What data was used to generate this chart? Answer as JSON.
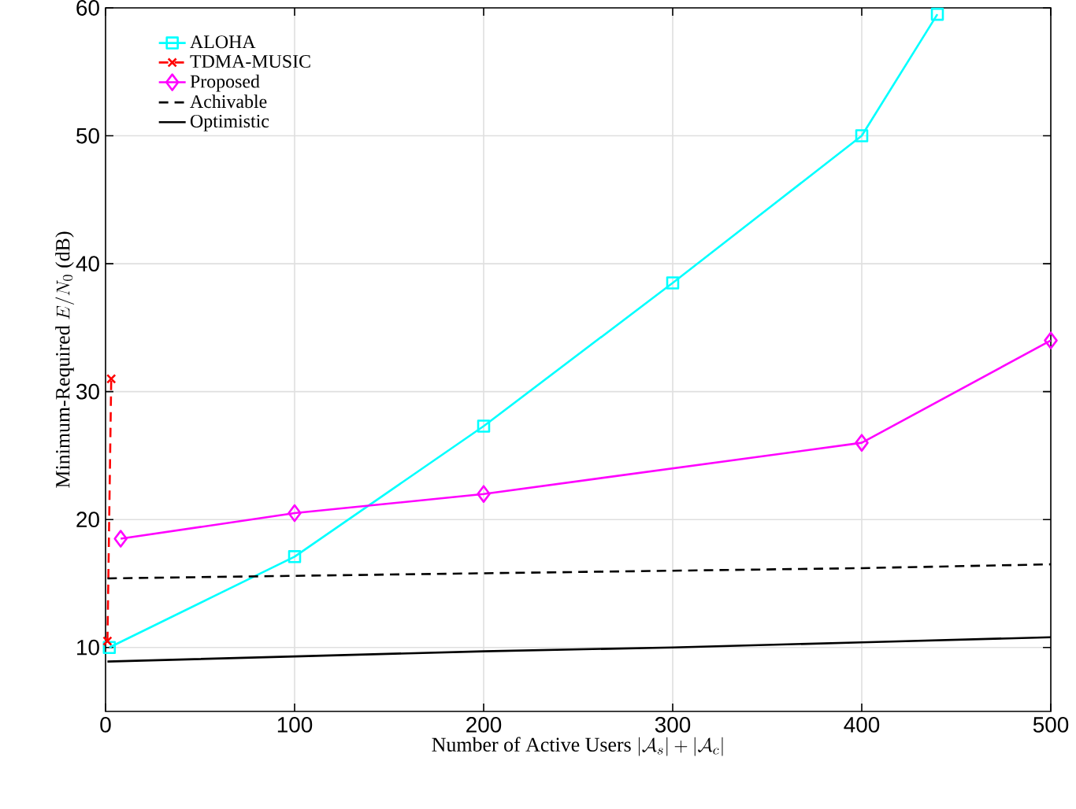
{
  "chart_data": {
    "type": "line",
    "xlabel": "\\mbox{Number of Active Users } |\\mathcal{A}_s|+|\\mathcal{A}_c|",
    "ylabel": "\\mbox{Minimum-Required } E/N_0 \\mbox{ (dB)}",
    "xlim": [
      0,
      500
    ],
    "ylim": [
      5,
      60
    ],
    "xticks": [
      0,
      100,
      200,
      300,
      400,
      500
    ],
    "yticks": [
      10,
      20,
      30,
      40,
      50,
      60
    ],
    "grid": true,
    "legend": "top left",
    "series": [
      {
        "name": "ALOHA",
        "color": "#00ffff",
        "marker": "square",
        "line_style": "solid",
        "x": [
          2,
          100,
          200,
          300,
          400,
          440
        ],
        "values": [
          10,
          17.1,
          27.3,
          38.5,
          50,
          59.5
        ]
      },
      {
        "name": "TDMA-MUSIC",
        "color": "#ff0000",
        "marker": "cross",
        "line_style": "dashed",
        "x": [
          1,
          3
        ],
        "values": [
          10.5,
          31
        ]
      },
      {
        "name": "Proposed",
        "color": "#ff00ff",
        "marker": "diamond",
        "line_style": "solid",
        "x": [
          8,
          100,
          200,
          400,
          500
        ],
        "values": [
          18.5,
          20.5,
          22,
          26,
          34
        ]
      },
      {
        "name": "Achivable",
        "color": "#000000",
        "marker": "none",
        "line_style": "dashed",
        "x": [
          1,
          100,
          200,
          300,
          400,
          500
        ],
        "values": [
          15.4,
          15.6,
          15.8,
          16.0,
          16.2,
          16.5
        ]
      },
      {
        "name": "Optimistic",
        "color": "#000000",
        "marker": "none",
        "line_style": "solid",
        "x": [
          1,
          100,
          200,
          300,
          400,
          500
        ],
        "values": [
          8.9,
          9.3,
          9.7,
          10.0,
          10.4,
          10.8
        ]
      }
    ]
  }
}
